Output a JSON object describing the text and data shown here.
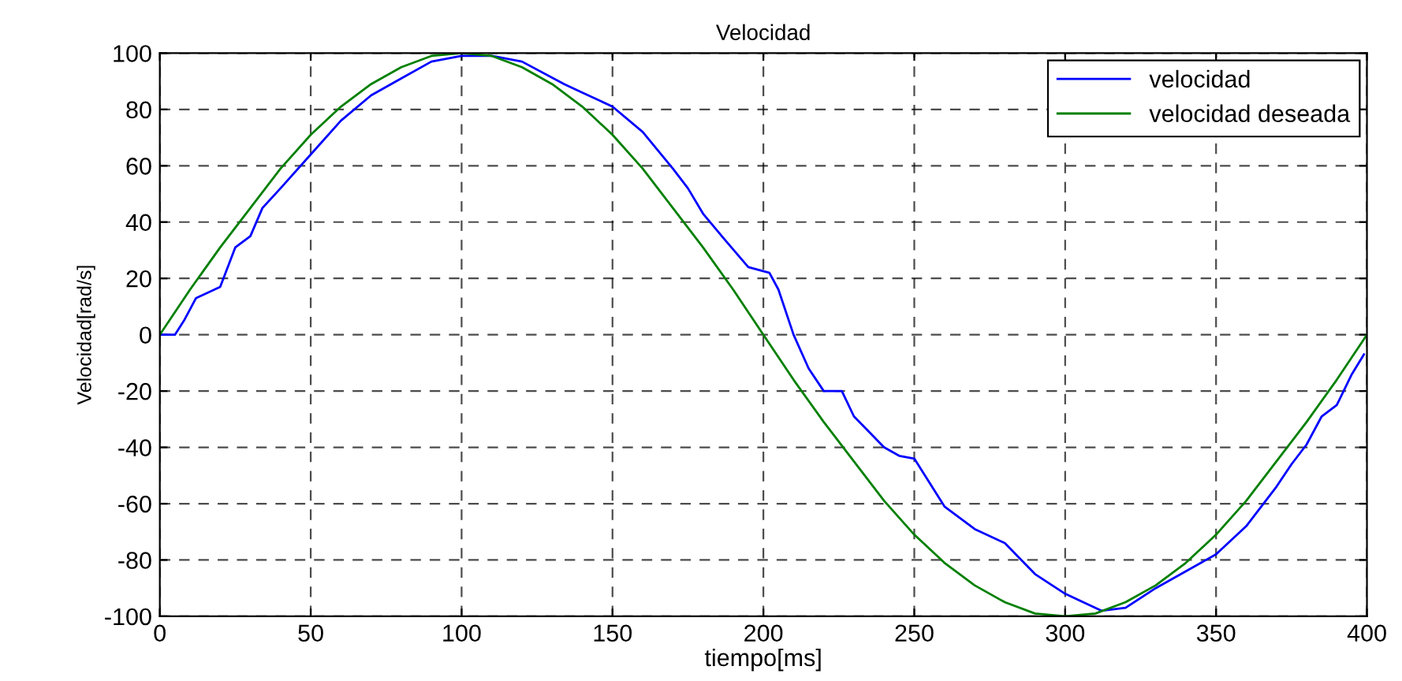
{
  "chart_data": {
    "type": "line",
    "title": "Velocidad",
    "xlabel": "tiempo[ms]",
    "ylabel": "Velocidad[rad/s]",
    "xlim": [
      0,
      400
    ],
    "xticks": [
      0,
      50,
      100,
      150,
      200,
      250,
      300,
      350,
      400
    ],
    "ylim": [
      -100,
      100
    ],
    "yticks": [
      -100,
      -80,
      -60,
      -40,
      -20,
      0,
      20,
      40,
      60,
      80,
      100
    ],
    "grid": true,
    "line_style": "solid",
    "legend": "top right",
    "series": [
      {
        "name": "velocidad",
        "color": "#0000ff",
        "x": [
          0,
          5,
          8,
          12,
          20,
          25,
          30,
          34,
          40,
          50,
          60,
          70,
          80,
          90,
          100,
          110,
          120,
          134,
          140,
          150,
          160,
          170,
          175,
          180,
          187,
          195,
          202,
          205,
          210,
          215,
          220,
          226,
          230,
          240,
          245,
          250,
          260,
          270,
          280,
          290,
          300,
          312,
          320,
          330,
          350,
          360,
          370,
          375,
          380,
          385,
          390,
          395,
          399
        ],
        "values": [
          0,
          0,
          5,
          13,
          17,
          31,
          35,
          45,
          52,
          64,
          76,
          85,
          91,
          97,
          99,
          99,
          97,
          89,
          86,
          81,
          72,
          59,
          52,
          43,
          34,
          24,
          22,
          16,
          0,
          -12,
          -20,
          -20,
          -29,
          -40,
          -43,
          -44,
          -61,
          -69,
          -74,
          -85,
          -92,
          -98,
          -97,
          -90,
          -78,
          -68,
          -54,
          -46,
          -39,
          -29,
          -25,
          -14,
          -7
        ]
      },
      {
        "name": "velocidad deseada",
        "color": "#008000",
        "x": [
          0,
          10,
          20,
          30,
          40,
          50,
          60,
          70,
          80,
          90,
          100,
          110,
          120,
          130,
          140,
          150,
          160,
          170,
          180,
          190,
          200,
          210,
          220,
          230,
          240,
          250,
          260,
          270,
          280,
          290,
          300,
          310,
          320,
          330,
          340,
          350,
          360,
          370,
          380,
          390,
          400
        ],
        "values": [
          0,
          16,
          31,
          45,
          59,
          71,
          81,
          89,
          95,
          99,
          100,
          99,
          95,
          89,
          81,
          71,
          59,
          45,
          31,
          16,
          0,
          -16,
          -31,
          -45,
          -59,
          -71,
          -81,
          -89,
          -95,
          -99,
          -100,
          -99,
          -95,
          -89,
          -81,
          -71,
          -59,
          -45,
          -31,
          -16,
          0
        ]
      }
    ]
  }
}
